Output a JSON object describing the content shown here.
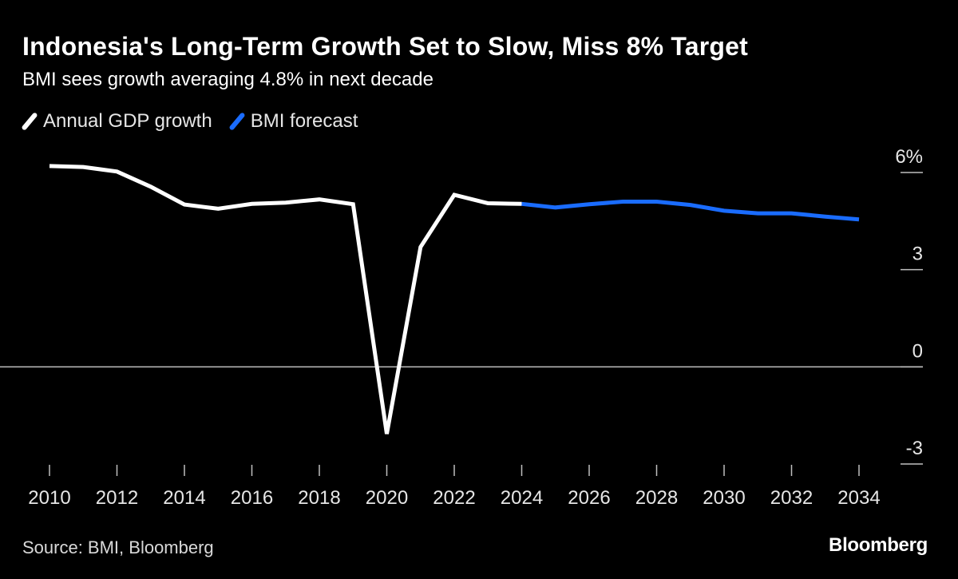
{
  "chart_data": {
    "type": "line",
    "title": "Indonesia's Long-Term Growth Set to Slow, Miss 8% Target",
    "subtitle": "BMI sees growth averaging 4.8% in next decade",
    "legend": [
      {
        "name": "Annual GDP growth",
        "color": "#ffffff"
      },
      {
        "name": "BMI forecast",
        "color": "#1a6cff"
      }
    ],
    "xlim": [
      2010,
      2034
    ],
    "ylim": [
      -3,
      6
    ],
    "x_ticks": [
      "2010",
      "2012",
      "2014",
      "2016",
      "2018",
      "2020",
      "2022",
      "2024",
      "2026",
      "2028",
      "2030",
      "2032",
      "2034"
    ],
    "y_ticks": [
      {
        "value": 6,
        "label": "6%"
      },
      {
        "value": 3,
        "label": "3"
      },
      {
        "value": 0,
        "label": "0"
      },
      {
        "value": -3,
        "label": "-3"
      }
    ],
    "series": [
      {
        "name": "Annual GDP growth",
        "color": "#ffffff",
        "x": [
          2010,
          2011,
          2012,
          2013,
          2014,
          2015,
          2016,
          2017,
          2018,
          2019,
          2020,
          2021,
          2022,
          2023,
          2024
        ],
        "values": [
          6.2,
          6.17,
          6.03,
          5.56,
          5.01,
          4.88,
          5.03,
          5.07,
          5.17,
          5.02,
          -2.07,
          3.7,
          5.31,
          5.05,
          5.03
        ]
      },
      {
        "name": "BMI forecast",
        "color": "#1a6cff",
        "x": [
          2024,
          2025,
          2026,
          2027,
          2028,
          2029,
          2030,
          2031,
          2032,
          2033,
          2034
        ],
        "values": [
          5.03,
          4.92,
          5.02,
          5.1,
          5.1,
          5.0,
          4.82,
          4.74,
          4.74,
          4.64,
          4.55
        ]
      }
    ]
  },
  "source": "Source: BMI, Bloomberg",
  "brand": "Bloomberg"
}
